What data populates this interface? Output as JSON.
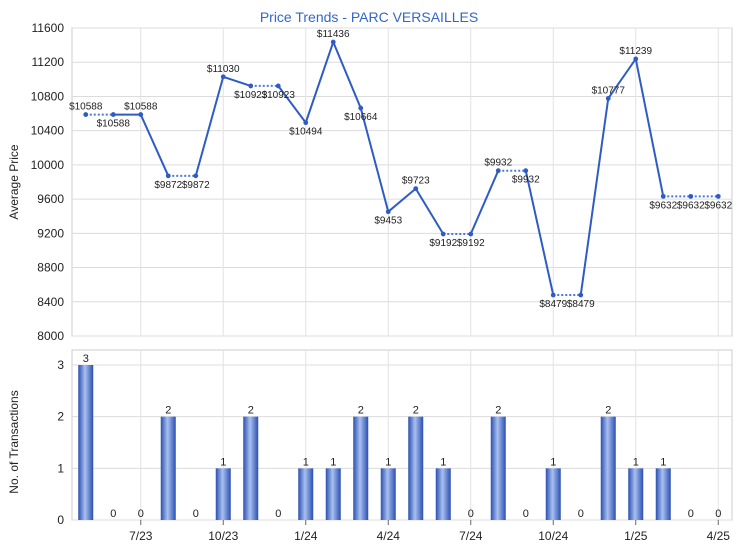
{
  "chart_data": [
    {
      "type": "line",
      "title": "Price Trends - PARC VERSAILLES",
      "xlabel": "",
      "ylabel": "Average Price",
      "ylim": [
        8000,
        11600
      ],
      "yticks": [
        8000,
        8400,
        8800,
        9200,
        9600,
        10000,
        10400,
        10800,
        11200,
        11600
      ],
      "xticks": [
        {
          "label": "7/23",
          "index": 2
        },
        {
          "label": "10/23",
          "index": 5
        },
        {
          "label": "1/24",
          "index": 8
        },
        {
          "label": "4/24",
          "index": 11
        },
        {
          "label": "7/24",
          "index": 14
        },
        {
          "label": "10/24",
          "index": 17
        },
        {
          "label": "1/25",
          "index": 20
        },
        {
          "label": "4/25",
          "index": 23
        }
      ],
      "grid": true,
      "colors": {
        "line": "#2f5bc4",
        "carry": "#4d79d6"
      },
      "values": [
        10588,
        10588,
        10588,
        9872,
        9872,
        11030,
        10923,
        10923,
        10494,
        11436,
        10664,
        9453,
        9723,
        9192,
        9192,
        9932,
        9932,
        8479,
        8479,
        10777,
        11239,
        9632,
        9632,
        9632
      ],
      "estimated": [
        false,
        true,
        false,
        false,
        true,
        false,
        false,
        true,
        false,
        false,
        false,
        false,
        false,
        false,
        true,
        false,
        true,
        false,
        true,
        false,
        false,
        false,
        true,
        true
      ],
      "labels": [
        "$10588",
        "$10588",
        "$10588",
        "$9872",
        "$9872",
        "$11030",
        "$10923",
        "$10923",
        "$10494",
        "$11436",
        "$10664",
        "$9453",
        "$9723",
        "$9192",
        "$9192",
        "$9932",
        "$9932",
        "$8479",
        "$8479",
        "$10777",
        "$11239",
        "$9632",
        "$9632",
        "$9632"
      ]
    },
    {
      "type": "bar",
      "title": "",
      "xlabel": "",
      "ylabel": "No. of Transactions",
      "ylim": [
        0,
        3
      ],
      "yticks": [
        0,
        1,
        2,
        3
      ],
      "xticks": [
        "7/23",
        "10/23",
        "1/24",
        "4/24",
        "7/24",
        "10/24",
        "1/25",
        "4/25"
      ],
      "grid": true,
      "colors": {
        "bar": "#3a63c8"
      },
      "values": [
        3,
        0,
        0,
        2,
        0,
        1,
        2,
        0,
        1,
        1,
        2,
        1,
        2,
        1,
        0,
        2,
        0,
        1,
        0,
        2,
        1,
        1,
        0,
        0
      ]
    }
  ]
}
